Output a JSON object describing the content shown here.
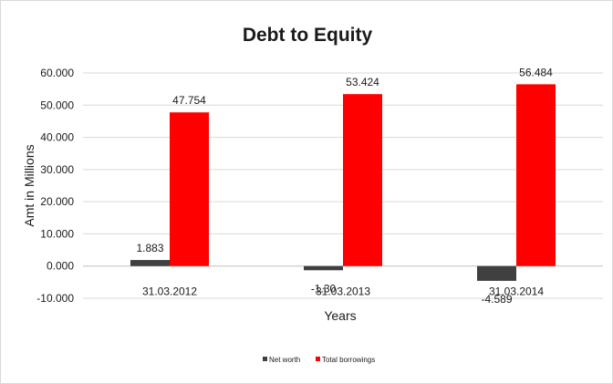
{
  "chart_data": {
    "type": "bar",
    "title": "Debt to Equity",
    "xlabel": "Years",
    "ylabel": "Amt in Millions",
    "categories": [
      "31.03.2012",
      "31.03.2013",
      "31.03.2014"
    ],
    "series": [
      {
        "name": "Net worth",
        "values": [
          1.883,
          -1.3,
          -4.589
        ],
        "value_labels": [
          "1.883",
          "-1.30",
          "-4.589"
        ],
        "color": "#404040"
      },
      {
        "name": "Total borrowings",
        "values": [
          47.754,
          53.424,
          56.484
        ],
        "value_labels": [
          "47.754",
          "53.424",
          "56.484"
        ],
        "color": "#ff0000"
      }
    ],
    "ylim": [
      -10,
      60
    ],
    "yticks": [
      -10,
      0,
      10,
      20,
      30,
      40,
      50,
      60
    ],
    "ytick_labels": [
      "-10.000",
      "0.000",
      "10.000",
      "20.000",
      "30.000",
      "40.000",
      "50.000",
      "60.000"
    ],
    "grid": true,
    "legend_position": "bottom"
  }
}
